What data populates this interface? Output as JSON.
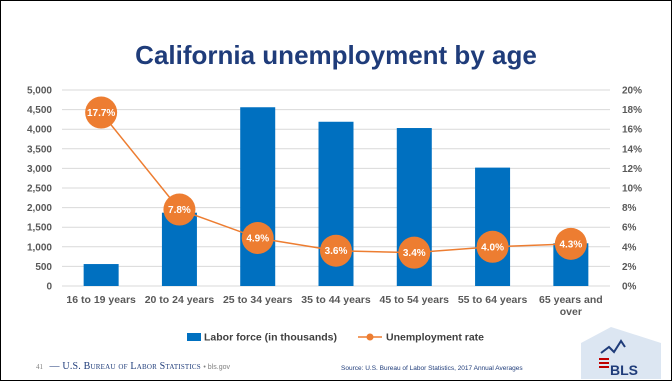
{
  "slide": {
    "page_number": "41",
    "footer_org": "— U.S. Bureau of Labor Statistics",
    "footer_site": "• bls.gov",
    "source": "Source: U.S. Bureau of Labor Statistics, 2017 Annual Averages",
    "logo_text": "BLS"
  },
  "chart_data": {
    "type": "bar",
    "title": "California unemployment by age",
    "categories": [
      "16 to 19 years",
      "20 to 24 years",
      "25 to 34 years",
      "35 to 44 years",
      "45 to 54 years",
      "55 to 64 years",
      "65 years and over"
    ],
    "category_lines": [
      [
        "16 to 19 years"
      ],
      [
        "20 to 24 years"
      ],
      [
        "25 to 34 years"
      ],
      [
        "35 to 44 years"
      ],
      [
        "45 to 54 years"
      ],
      [
        "55 to 64 years"
      ],
      [
        "65 years and",
        "over"
      ]
    ],
    "series": [
      {
        "name": "Labor force (in thousands)",
        "type": "bar",
        "axis": "left",
        "color": "#0070c0",
        "values": [
          560,
          1870,
          4560,
          4190,
          4030,
          3020,
          1090
        ]
      },
      {
        "name": "Unemployment rate",
        "type": "line",
        "axis": "right",
        "color": "#ed7d31",
        "values": [
          17.7,
          7.8,
          4.9,
          3.6,
          3.4,
          4.0,
          4.3
        ],
        "labels": [
          "17.7%",
          "7.8%",
          "4.9%",
          "3.6%",
          "3.4%",
          "4.0%",
          "4.3%"
        ]
      }
    ],
    "y_left": {
      "min": 0,
      "max": 5000,
      "step": 500,
      "tick_labels": [
        "0",
        "500",
        "1,000",
        "1,500",
        "2,000",
        "2,500",
        "3,000",
        "3,500",
        "4,000",
        "4,500",
        "5,000"
      ]
    },
    "y_right": {
      "min": 0,
      "max": 20,
      "step": 2,
      "tick_labels": [
        "0%",
        "2%",
        "4%",
        "6%",
        "8%",
        "10%",
        "12%",
        "14%",
        "16%",
        "18%",
        "20%"
      ]
    },
    "grid": true,
    "legend": "bottom-center"
  }
}
